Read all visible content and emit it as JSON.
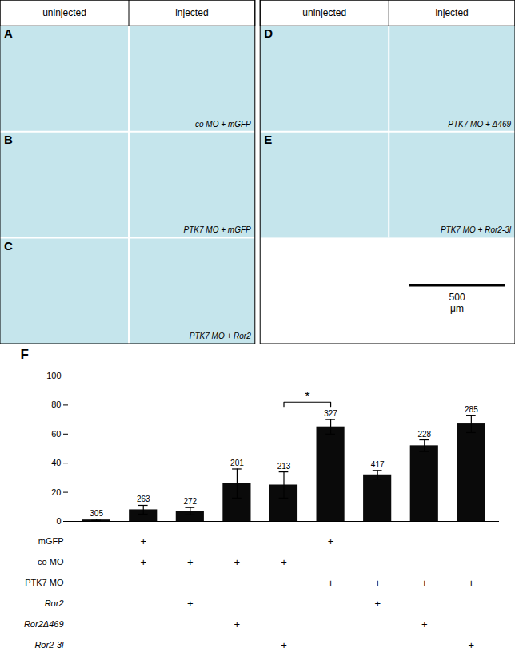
{
  "chart_data": {
    "type": "bar",
    "panel_label": "F",
    "categories": [
      null,
      null,
      null,
      null,
      null,
      null,
      null,
      null,
      null
    ],
    "values": [
      1,
      8,
      7,
      26,
      25,
      65,
      32,
      52,
      67
    ],
    "errors": [
      0.5,
      3,
      2.5,
      10,
      9,
      5,
      3,
      4,
      6
    ],
    "n_labels": [
      "305",
      "263",
      "272",
      "201",
      "213",
      "327",
      "417",
      "228",
      "285"
    ],
    "color": "#0a0a0a",
    "ylim": [
      0,
      100
    ],
    "yticks": [
      0,
      20,
      40,
      60,
      80,
      100
    ],
    "tick_labels": "y",
    "bracket": {
      "from": 4,
      "to": 5,
      "y": 82,
      "drop": 3,
      "text": "*"
    },
    "table": {
      "rows": [
        "mGFP",
        "co MO",
        "PTK7 MO",
        "Ror2",
        "Ror2Δ469",
        "Ror2-3l"
      ],
      "italic_rows": [
        3,
        4,
        5
      ],
      "plus_cols": [
        [
          1,
          5
        ],
        [
          1,
          2,
          3,
          4
        ],
        [
          5,
          6,
          7,
          8
        ],
        [
          2,
          6
        ],
        [
          3,
          7
        ],
        [
          4,
          8
        ]
      ],
      "mark": "+"
    },
    "image_panels": {
      "color": "#c5e5ec",
      "headers": [
        "uninjected",
        "injected",
        "uninjected",
        "injected"
      ],
      "left_labels": [
        "A",
        "B",
        "C"
      ],
      "left_annotations": [
        "co MO + mGFP",
        "PTK7 MO + mGFP",
        "PTK7 MO + Ror2"
      ],
      "right_labels": [
        "D",
        "E"
      ],
      "right_annotations": [
        "PTK7 MO + Δ469",
        "PTK7 MO + Ror2-3l"
      ],
      "scale_bar": "500\nμm"
    }
  }
}
